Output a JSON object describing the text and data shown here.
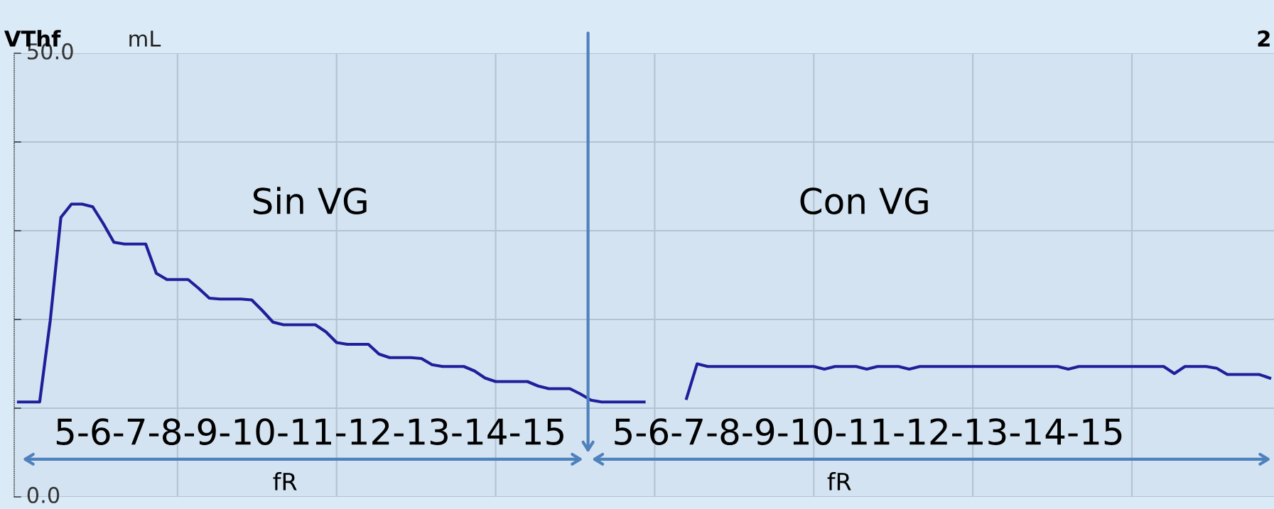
{
  "chart_data": {
    "type": "line",
    "ylabel": "VThf",
    "annotations": [
      "mL",
      "2",
      "Sin VG",
      "Con VG",
      "5-6-7-8-9-10-11-12-13-14-15",
      "5-6-7-8-9-10-11-12-13-14-15",
      "fR",
      "fR"
    ],
    "categories": [
      null,
      null,
      null,
      null,
      null,
      null,
      null,
      null,
      null,
      null,
      null,
      null,
      null,
      null,
      null,
      null,
      null,
      null,
      null,
      null,
      null,
      null,
      null,
      null,
      null,
      null,
      null,
      null,
      null,
      null,
      null,
      null,
      null,
      null,
      null,
      null,
      null,
      null,
      null,
      null,
      null,
      null,
      null,
      null,
      null,
      null,
      null,
      null,
      null,
      null,
      null,
      null,
      null,
      null,
      null,
      null,
      null,
      null,
      null,
      null,
      null,
      null,
      null,
      null,
      null,
      null,
      null,
      null,
      null,
      null,
      null,
      null,
      null,
      null,
      null,
      null,
      null,
      null,
      null,
      null,
      null,
      null,
      null,
      null,
      null,
      null,
      null,
      null,
      null,
      null,
      null,
      null,
      null,
      null,
      null,
      null,
      null,
      null,
      null,
      null,
      null,
      null,
      null,
      null,
      null,
      null,
      null,
      null,
      null,
      null,
      null,
      null,
      null,
      null,
      null,
      null,
      null,
      null,
      null
    ],
    "series": [
      {
        "color": "#1f1f9a",
        "values": [
          10.7,
          10.7,
          10.7,
          19.9,
          31.5,
          33.0,
          33.0,
          32.7,
          30.8,
          28.7,
          28.5,
          28.5,
          28.5,
          25.2,
          24.5,
          24.5,
          24.5,
          23.5,
          22.4,
          22.3,
          22.3,
          22.3,
          22.2,
          21.0,
          19.7,
          19.4,
          19.4,
          19.4,
          19.4,
          18.6,
          17.4,
          17.2,
          17.2,
          17.2,
          16.1,
          15.7,
          15.7,
          15.7,
          15.6,
          14.9,
          14.7,
          14.7,
          14.7,
          14.2,
          13.4,
          13.0,
          13.0,
          13.0,
          13.0,
          12.5,
          12.2,
          12.2,
          12.2,
          11.6,
          10.9,
          10.7,
          10.7,
          10.7,
          10.7,
          10.7,
          null,
          null,
          null,
          11.1,
          15.0,
          14.7,
          14.7,
          14.7,
          14.7,
          14.7,
          14.7,
          14.7,
          14.7,
          14.7,
          14.7,
          14.7,
          14.4,
          14.7,
          14.7,
          14.7,
          14.4,
          14.7,
          14.7,
          14.7,
          14.4,
          14.7,
          14.7,
          14.7,
          14.7,
          14.7,
          14.7,
          14.7,
          14.7,
          14.7,
          14.7,
          14.7,
          14.7,
          14.7,
          14.7,
          14.4,
          14.7,
          14.7,
          14.7,
          14.7,
          14.7,
          14.7,
          14.7,
          14.7,
          14.7,
          13.9,
          14.7,
          14.7,
          14.7,
          14.5,
          13.8,
          13.8,
          13.8,
          13.8,
          13.4
        ]
      }
    ],
    "ylim": [
      0,
      50
    ],
    "yticks": [
      {
        "value": 0,
        "label": "0.0"
      },
      {
        "value": 10,
        "label": null
      },
      {
        "value": 20,
        "label": null
      },
      {
        "value": 30,
        "label": null
      },
      {
        "value": 40,
        "label": null
      },
      {
        "value": 50,
        "label": "50.0"
      }
    ],
    "grid": true,
    "marker": "none",
    "line_style": "solid"
  }
}
